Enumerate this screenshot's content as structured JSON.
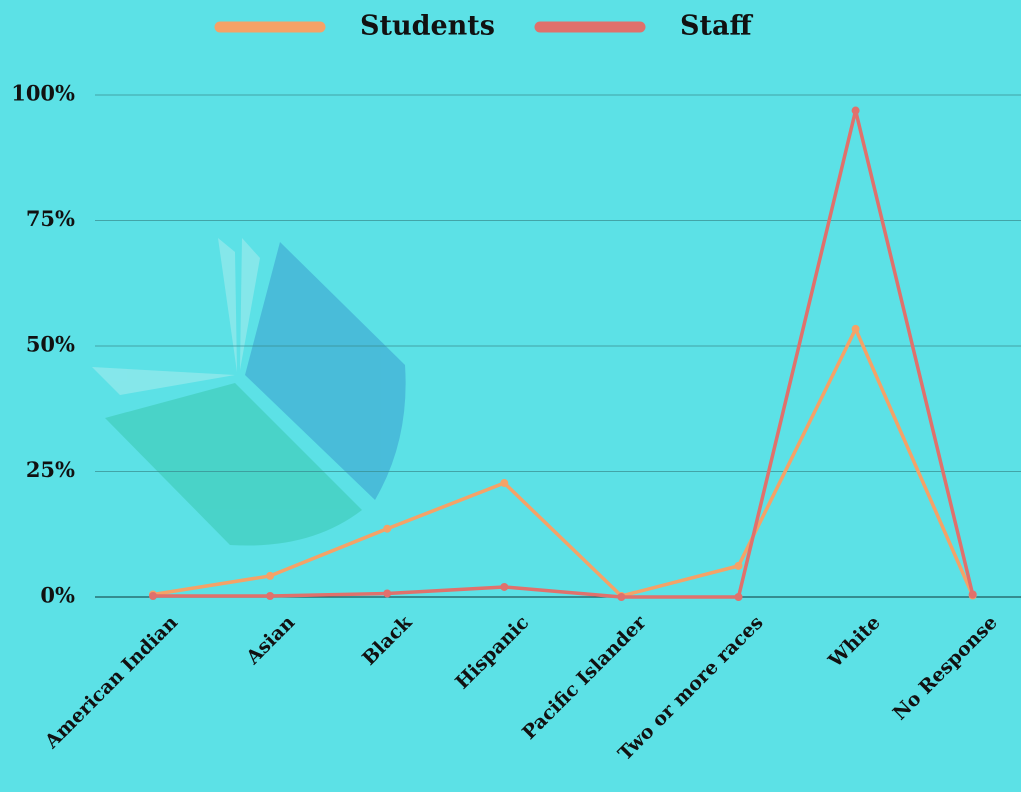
{
  "chart_data": {
    "type": "line",
    "categories": [
      "American Indian",
      "Asian",
      "Black",
      "Hispanic",
      "Pacific Islander",
      "Two or more races",
      "White",
      "No Response"
    ],
    "series": [
      {
        "name": "Students",
        "color": "#f5a267",
        "values": [
          0.5,
          4.2,
          13.6,
          22.7,
          0.2,
          6.2,
          53.4,
          0.3
        ]
      },
      {
        "name": "Staff",
        "color": "#e0716c",
        "values": [
          0.2,
          0.2,
          0.7,
          2,
          0,
          0,
          96.9,
          0.5
        ]
      }
    ],
    "ylim": [
      0,
      100
    ],
    "yticks": [
      {
        "value": 0,
        "label": "0%"
      },
      {
        "value": 25,
        "label": "25%"
      },
      {
        "value": 50,
        "label": "50%"
      },
      {
        "value": 75,
        "label": "75%"
      },
      {
        "value": 100,
        "label": "100%"
      }
    ],
    "grid": true,
    "legend": "top"
  }
}
